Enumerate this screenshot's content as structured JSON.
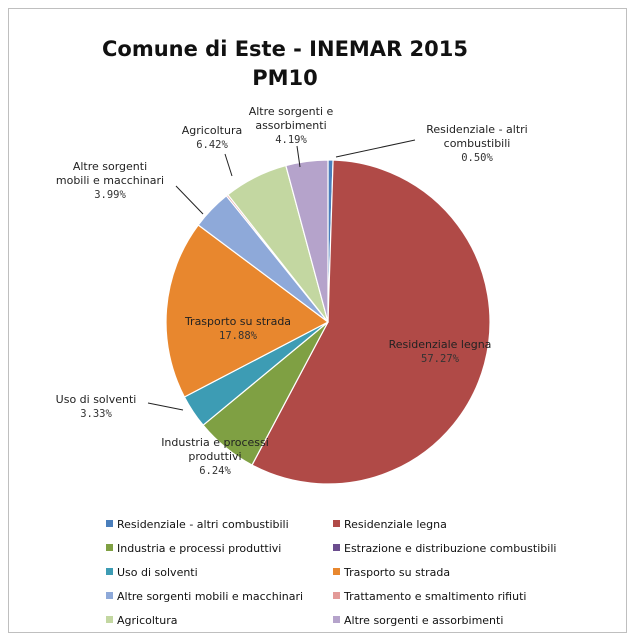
{
  "chart_data": {
    "type": "pie",
    "title_line1": "Comune di Este - INEMAR 2015",
    "title_line2": "PM10",
    "slices": [
      {
        "name": "Residenziale - altri combustibili",
        "value": 0.5,
        "pct_label": "0.50%",
        "color": "#4a7ebb",
        "label_lines": [
          "Residenziale - altri",
          "combustibili"
        ]
      },
      {
        "name": "Residenziale legna",
        "value": 57.27,
        "pct_label": "57.27%",
        "color": "#b04a47",
        "label_lines": [
          "Residenziale legna"
        ]
      },
      {
        "name": "Industria e processi produttivi",
        "value": 6.24,
        "pct_label": "6.24%",
        "color": "#7fa043",
        "label_lines": [
          "Industria e processi",
          "produttivi"
        ]
      },
      {
        "name": "Estrazione e distribuzione combustibili",
        "value": 0.0,
        "pct_label": "",
        "color": "#6b4d8e",
        "label_lines": []
      },
      {
        "name": "Uso di solventi",
        "value": 3.33,
        "pct_label": "3.33%",
        "color": "#3d9cb4",
        "label_lines": [
          "Uso di solventi"
        ]
      },
      {
        "name": "Trasporto su strada",
        "value": 17.88,
        "pct_label": "17.88%",
        "color": "#e8872e",
        "label_lines": [
          "Trasporto su strada"
        ]
      },
      {
        "name": "Altre sorgenti mobili e macchinari",
        "value": 3.99,
        "pct_label": "3.99%",
        "color": "#8ea9d9",
        "label_lines": [
          "Altre sorgenti",
          "mobili e macchinari"
        ]
      },
      {
        "name": "Trattamento e smaltimento rifiuti",
        "value": 0.18,
        "pct_label": "",
        "color": "#e39a98",
        "label_lines": []
      },
      {
        "name": "Agricoltura",
        "value": 6.42,
        "pct_label": "6.42%",
        "color": "#c3d7a1",
        "label_lines": [
          "Agricoltura"
        ]
      },
      {
        "name": "Altre sorgenti e assorbimenti",
        "value": 4.19,
        "pct_label": "4.19%",
        "color": "#b5a3cb",
        "label_lines": [
          "Altre sorgenti e",
          "assorbimenti"
        ]
      }
    ],
    "legend": [
      "Residenziale - altri combustibili",
      "Residenziale legna",
      "Industria e processi produttivi",
      "Estrazione e distribuzione combustibili",
      "Uso di solventi",
      "Trasporto su strada",
      "Altre sorgenti mobili e macchinari",
      "Trattamento e smaltimento rifiuti",
      "Agricoltura",
      "Altre sorgenti e assorbimenti"
    ],
    "legend_placement": "bottom"
  }
}
